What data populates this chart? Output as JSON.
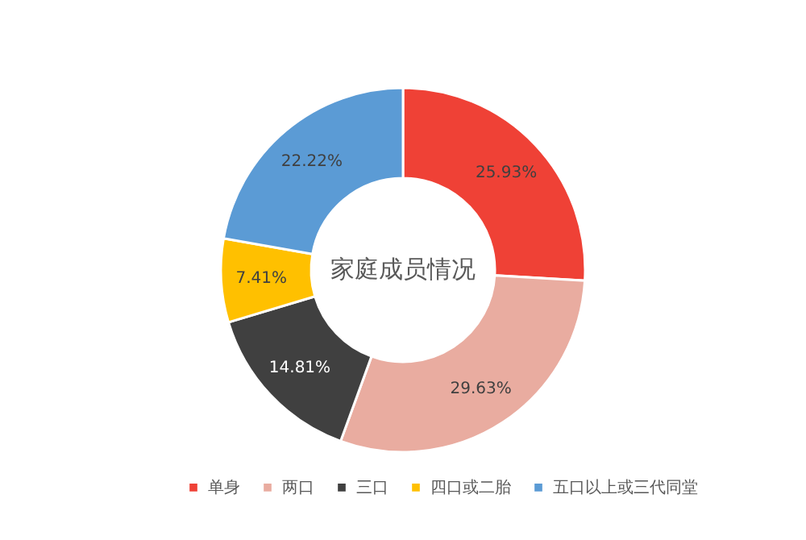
{
  "chart_data": {
    "type": "donut",
    "title": "家庭成员情况",
    "categories": [
      "单身",
      "两口",
      "三口",
      "四口或二胎",
      "五口以上或三代同堂"
    ],
    "values": [
      25.93,
      29.63,
      14.81,
      7.41,
      22.22
    ],
    "value_labels": [
      "25.93%",
      "29.63%",
      "14.81%",
      "7.41%",
      "22.22%"
    ],
    "colors": [
      "#ef4136",
      "#e9aca0",
      "#404040",
      "#ffc000",
      "#5b9bd5"
    ],
    "legend": "bottom"
  }
}
